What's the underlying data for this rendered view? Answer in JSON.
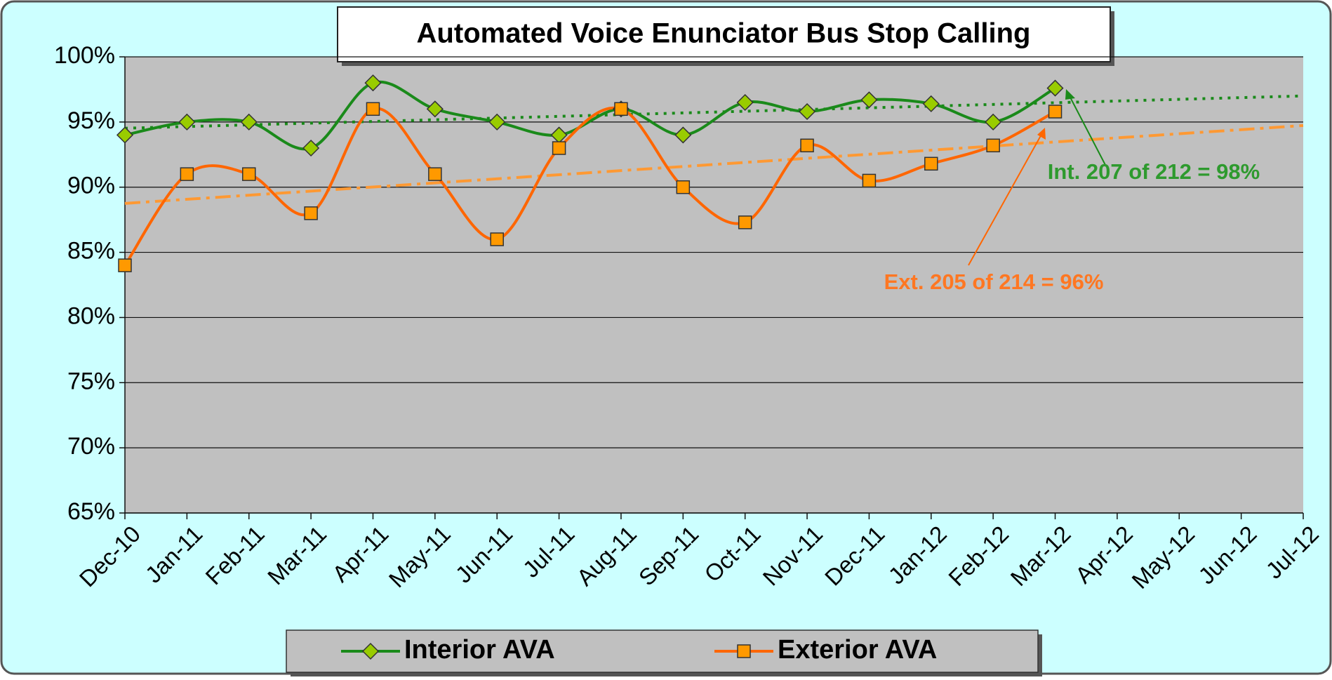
{
  "chart_data": {
    "type": "line",
    "title": "Automated Voice Enunciator Bus Stop Calling",
    "categories": [
      "Dec-10",
      "Jan-11",
      "Feb-11",
      "Mar-11",
      "Apr-11",
      "May-11",
      "Jun-11",
      "Jul-11",
      "Aug-11",
      "Sep-11",
      "Oct-11",
      "Nov-11",
      "Dec-11",
      "Jan-12",
      "Feb-12",
      "Mar-12",
      "Apr-12",
      "May-12",
      "Jun-12",
      "Jul-12"
    ],
    "series": [
      {
        "name": "Interior AVA",
        "color": "#1a8a1a",
        "marker_color": "#99cc00",
        "values": [
          94,
          95,
          95,
          93,
          98,
          96,
          95,
          94,
          96,
          94,
          96.5,
          95.8,
          96.7,
          96.4,
          95,
          97.6,
          null,
          null,
          null,
          null
        ]
      },
      {
        "name": "Exterior AVA",
        "color": "#ff6600",
        "marker_color": "#ff9900",
        "values": [
          84,
          91,
          91,
          88,
          96,
          91,
          86,
          93,
          96,
          90,
          87.3,
          93.2,
          90.5,
          91.8,
          93.2,
          95.8,
          null,
          null,
          null,
          null
        ]
      }
    ],
    "ylim": [
      65,
      100
    ],
    "yticks": [
      {
        "value": 65,
        "label": "65%"
      },
      {
        "value": 70,
        "label": "70%"
      },
      {
        "value": 75,
        "label": "75%"
      },
      {
        "value": 80,
        "label": "80%"
      },
      {
        "value": 85,
        "label": "85%"
      },
      {
        "value": 90,
        "label": "90%"
      },
      {
        "value": 95,
        "label": "95%"
      },
      {
        "value": 100,
        "label": "100%"
      }
    ],
    "grid": true,
    "trendline": true,
    "legend": "bottom",
    "annotations": [
      "Int. 207 of 212 = 98%",
      "Ext. 205 of 214 = 96%"
    ]
  }
}
